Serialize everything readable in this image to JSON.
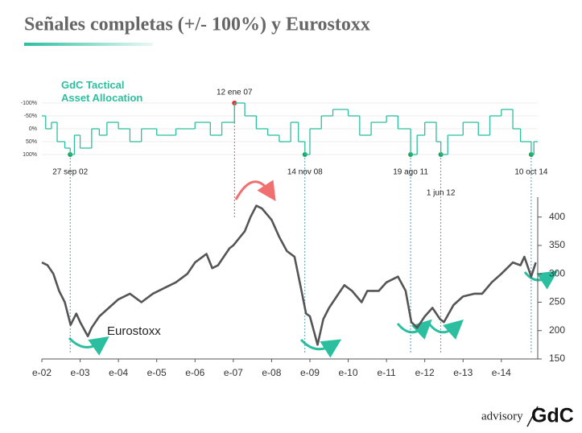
{
  "title": "Señales completas (+/- 100%) y Eurostoxx",
  "logo": {
    "word": "advisory",
    "brand": "GdC"
  },
  "chart_data": [
    {
      "type": "line",
      "step": true,
      "title": "GdC Tactical Asset Allocation",
      "xlim": [
        2002,
        2014.95
      ],
      "ylim": [
        100,
        -100
      ],
      "yticks": [
        {
          "value": -100,
          "label": "-100%"
        },
        {
          "value": -50,
          "label": "-50%"
        },
        {
          "value": 0,
          "label": "0%"
        },
        {
          "value": 50,
          "label": "50%"
        },
        {
          "value": 100,
          "label": "100%"
        }
      ],
      "grid": true,
      "x": [
        2002.0,
        2002.1,
        2002.25,
        2002.4,
        2002.6,
        2002.74,
        2002.85,
        2003.0,
        2003.3,
        2003.5,
        2003.7,
        2004.0,
        2004.3,
        2004.6,
        2005.0,
        2005.5,
        2006.0,
        2006.4,
        2006.7,
        2007.03,
        2007.3,
        2007.6,
        2007.9,
        2008.2,
        2008.5,
        2008.7,
        2008.87,
        2009.0,
        2009.3,
        2009.6,
        2010.0,
        2010.3,
        2010.6,
        2011.0,
        2011.3,
        2011.63,
        2011.8,
        2012.0,
        2012.3,
        2012.42,
        2012.6,
        2013.0,
        2013.4,
        2013.7,
        2014.0,
        2014.3,
        2014.5,
        2014.78,
        2014.85
      ],
      "series": [
        {
          "color": "#2bbf9f",
          "values": [
            -50,
            0,
            -25,
            50,
            75,
            100,
            25,
            75,
            0,
            25,
            -25,
            0,
            50,
            0,
            25,
            0,
            -25,
            25,
            -25,
            -100,
            -50,
            0,
            25,
            50,
            -25,
            50,
            100,
            0,
            -50,
            -75,
            -50,
            25,
            -25,
            -50,
            0,
            100,
            25,
            -25,
            50,
            100,
            25,
            -25,
            25,
            -50,
            -75,
            0,
            50,
            100,
            50
          ]
        }
      ],
      "annotations": [
        {
          "x": 2002.74,
          "value": 100,
          "label": "27 sep 02",
          "color": "#1aa35a"
        },
        {
          "x": 2007.03,
          "value": -100,
          "label": "12 ene 07",
          "color": "#e8262b"
        },
        {
          "x": 2008.87,
          "value": 100,
          "label": "14 nov 08",
          "color": "#1aa35a"
        },
        {
          "x": 2011.63,
          "value": 100,
          "label": "19 ago 11",
          "color": "#1aa35a"
        },
        {
          "x": 2012.42,
          "value": 100,
          "label": "1 jun 12",
          "color": "#1aa35a"
        },
        {
          "x": 2014.78,
          "value": 100,
          "label": "10 oct 14",
          "color": "#1aa35a"
        }
      ]
    },
    {
      "type": "line",
      "xlim": [
        2002,
        2014.95
      ],
      "ylim": [
        150,
        435
      ],
      "xticks": [
        {
          "value": 2002,
          "label": "e-02"
        },
        {
          "value": 2003,
          "label": "e-03"
        },
        {
          "value": 2004,
          "label": "e-04"
        },
        {
          "value": 2005,
          "label": "e-05"
        },
        {
          "value": 2006,
          "label": "e-06"
        },
        {
          "value": 2007,
          "label": "e-07"
        },
        {
          "value": 2008,
          "label": "e-08"
        },
        {
          "value": 2009,
          "label": "e-09"
        },
        {
          "value": 2010,
          "label": "e-10"
        },
        {
          "value": 2011,
          "label": "e-11"
        },
        {
          "value": 2012,
          "label": "e-12"
        },
        {
          "value": 2013,
          "label": "e-13"
        },
        {
          "value": 2014,
          "label": "e-14"
        }
      ],
      "yticks": [
        150,
        200,
        250,
        300,
        350,
        400
      ],
      "x": [
        2002.0,
        2002.15,
        2002.3,
        2002.45,
        2002.6,
        2002.75,
        2002.9,
        2003.0,
        2003.2,
        2003.3,
        2003.5,
        2003.75,
        2004.0,
        2004.3,
        2004.6,
        2004.9,
        2005.2,
        2005.5,
        2005.8,
        2006.0,
        2006.3,
        2006.45,
        2006.6,
        2006.9,
        2007.0,
        2007.3,
        2007.45,
        2007.6,
        2007.75,
        2008.0,
        2008.2,
        2008.4,
        2008.6,
        2008.75,
        2008.9,
        2009.0,
        2009.2,
        2009.35,
        2009.5,
        2009.75,
        2009.9,
        2010.1,
        2010.35,
        2010.5,
        2010.8,
        2011.0,
        2011.3,
        2011.5,
        2011.65,
        2011.8,
        2012.0,
        2012.2,
        2012.4,
        2012.5,
        2012.75,
        2013.0,
        2013.3,
        2013.5,
        2013.75,
        2014.0,
        2014.3,
        2014.5,
        2014.6,
        2014.78,
        2014.9
      ],
      "series": [
        {
          "name": "Eurostoxx",
          "color": "#555555",
          "values": [
            320,
            315,
            300,
            270,
            250,
            210,
            230,
            215,
            190,
            205,
            225,
            240,
            255,
            265,
            250,
            265,
            275,
            285,
            300,
            320,
            335,
            310,
            315,
            345,
            350,
            375,
            400,
            420,
            415,
            395,
            365,
            340,
            330,
            280,
            230,
            225,
            175,
            220,
            240,
            265,
            280,
            270,
            250,
            270,
            270,
            285,
            295,
            270,
            215,
            205,
            225,
            240,
            220,
            215,
            245,
            260,
            265,
            265,
            285,
            300,
            320,
            315,
            330,
            295,
            320
          ]
        }
      ]
    }
  ]
}
